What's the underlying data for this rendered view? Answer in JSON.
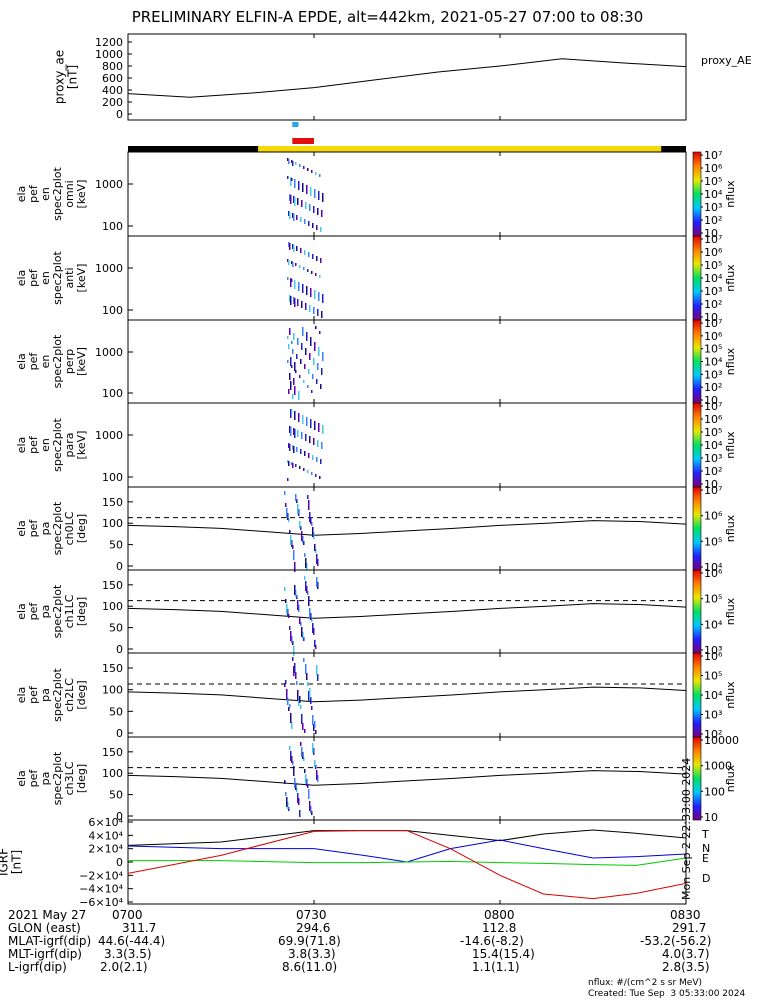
{
  "title": "PRELIMINARY ELFIN-A EPDE, alt=442km, 2021-05-27 07:00 to 08:30",
  "chart_data": [
    {
      "type": "line",
      "panel": "proxy_ae",
      "ylabel_lines": [
        "proxy_ae",
        "[nT]"
      ],
      "yticks": [
        "0",
        "200",
        "400",
        "600",
        "800",
        "1000",
        "1200"
      ],
      "ylim": [
        0,
        1300
      ],
      "legend": "proxy_AE",
      "x_minutes": [
        0,
        10,
        20,
        30,
        40,
        50,
        60,
        70,
        80,
        90
      ],
      "values": [
        340,
        280,
        350,
        440,
        570,
        700,
        800,
        920,
        850,
        790
      ],
      "series_color": "#000000"
    },
    {
      "type": "heatmap",
      "panel": "energy",
      "spectra": [
        {
          "ylabel_lines": [
            "ela",
            "pef",
            "en",
            "spec2plot",
            "omni",
            "[keV]"
          ]
        },
        {
          "ylabel_lines": [
            "ela",
            "pef",
            "en",
            "spec2plot",
            "anti",
            "[keV]"
          ]
        },
        {
          "ylabel_lines": [
            "ela",
            "pef",
            "en",
            "spec2plot",
            "perp",
            "[keV]"
          ]
        },
        {
          "ylabel_lines": [
            "ela",
            "pef",
            "en",
            "spec2plot",
            "para",
            "[keV]"
          ]
        }
      ],
      "yticks": [
        "100",
        "1000"
      ],
      "yscale": "log",
      "colorbar_label": "nflux",
      "colorbar_ticks": [
        "10",
        "10²",
        "10³",
        "10⁴",
        "10⁵",
        "10⁶",
        "10⁷"
      ]
    },
    {
      "type": "heatmap",
      "panel": "pitch_angle",
      "spectra": [
        {
          "ylabel_lines": [
            "ela",
            "pef",
            "pa",
            "spec2plot",
            "ch0LC",
            "[deg]"
          ],
          "colorbar_ticks": [
            "10⁴",
            "10⁵",
            "10⁶",
            "10⁷"
          ]
        },
        {
          "ylabel_lines": [
            "ela",
            "pef",
            "pa",
            "spec2plot",
            "ch1LC",
            "[deg]"
          ],
          "colorbar_ticks": [
            "10³",
            "10⁴",
            "10⁵",
            "10⁶"
          ]
        },
        {
          "ylabel_lines": [
            "ela",
            "pef",
            "pa",
            "spec2plot",
            "ch2LC",
            "[deg]"
          ],
          "colorbar_ticks": [
            "10²",
            "10³",
            "10⁴",
            "10⁵",
            "10⁶"
          ]
        },
        {
          "ylabel_lines": [
            "ela",
            "pef",
            "pa",
            "spec2plot",
            "ch3LC",
            "[deg]"
          ],
          "colorbar_ticks": [
            "10",
            "100",
            "1000",
            "10000"
          ]
        }
      ],
      "yticks": [
        "0",
        "50",
        "100",
        "150"
      ],
      "ylim": [
        0,
        180
      ],
      "colorbar_label": "nflux",
      "solid_line_deg": [
        95,
        92,
        88,
        80,
        72,
        76,
        82,
        88,
        95,
        100,
        106,
        104,
        98
      ],
      "dashed_line_deg": 113
    },
    {
      "type": "line",
      "panel": "geomagnetic field",
      "ylabel_lines": [
        "IGRF",
        "[nT]"
      ],
      "yticks": [
        "−6×10⁴",
        "−4×10⁴",
        "−2×10⁴",
        "0",
        "2×10⁴",
        "4×10⁴",
        "6×10⁴"
      ],
      "ylim": [
        -60000,
        60000
      ],
      "x_minutes": [
        0,
        15,
        30,
        38,
        45,
        52,
        60,
        67,
        75,
        82,
        90
      ],
      "series": [
        {
          "name": "T",
          "color": "#000000",
          "values": [
            25000,
            30000,
            47000,
            47000,
            47000,
            40000,
            32000,
            42000,
            48000,
            43000,
            36000
          ]
        },
        {
          "name": "N",
          "color": "#0000dd",
          "values": [
            24000,
            20000,
            20000,
            10000,
            0,
            20000,
            33000,
            20000,
            6000,
            8000,
            12000
          ]
        },
        {
          "name": "E",
          "color": "#00cc00",
          "values": [
            2000,
            2000,
            -1000,
            -1000,
            0,
            1000,
            -1000,
            -2000,
            -4000,
            -5000,
            6000
          ]
        },
        {
          "name": "D",
          "color": "#dd0000",
          "values": [
            -17000,
            10000,
            46000,
            47000,
            47000,
            20000,
            -20000,
            -48000,
            -55000,
            -47000,
            -32000
          ]
        }
      ]
    }
  ],
  "sat_markers": [
    {
      "color": "#2aa6e6",
      "start_min": 26.5,
      "end_min": 27.5,
      "row": "top"
    },
    {
      "color": "#e01010",
      "start_min": 26.5,
      "end_min": 30,
      "row": "bottom"
    }
  ],
  "status_bar": [
    {
      "color": "#000000",
      "start_min": 0,
      "end_min": 21
    },
    {
      "color": "#f5d800",
      "start_min": 21,
      "end_min": 86
    },
    {
      "color": "#000000",
      "start_min": 86,
      "end_min": 90
    }
  ],
  "xaxis_table": [
    {
      "label": "2021 May 27",
      "values": [
        "0700",
        "0730",
        "0800",
        "0830"
      ]
    },
    {
      "label": "GLON (east)",
      "values": [
        "311.7",
        "294.6",
        "112.8",
        "291.7"
      ]
    },
    {
      "label": "MLAT-igrf(dip)",
      "values": [
        "44.6(-44.4)",
        "69.9(71.8)",
        "-14.6(-8.2)",
        "-53.2(-56.2)"
      ]
    },
    {
      "label": "MLT-igrf(dip)",
      "values": [
        "3.3(3.5)",
        "3.8(3.3)",
        "15.4(15.4)",
        "4.0(3.7)"
      ]
    },
    {
      "label": "L-igrf(dip)",
      "values": [
        "2.0(2.1)",
        "8.6(11.0)",
        "1.1(1.1)",
        "2.8(3.5)"
      ]
    }
  ],
  "footer": {
    "units": "nflux: #/(cm^2 s sr MeV)",
    "created": "Created: Tue Sep  3 05:33:00 2024",
    "side_note": "Mon Sep  2 22:33:00 2024"
  }
}
